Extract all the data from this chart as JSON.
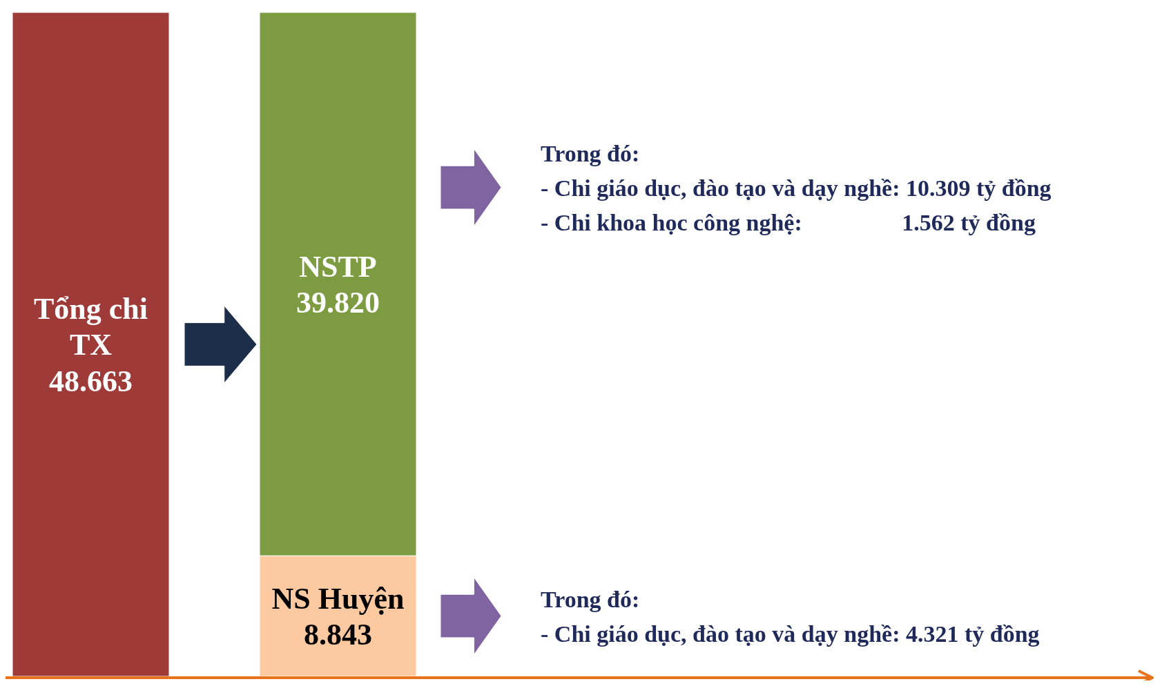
{
  "chart_data": {
    "type": "bar",
    "stacked": true,
    "categories": [
      null,
      null
    ],
    "series": [
      {
        "name": "Tổng chi TX",
        "color": "#9e3a38",
        "values": [
          48663,
          null
        ],
        "value_labels": [
          "48.663",
          null
        ]
      },
      {
        "name": "NS Huyện",
        "color": "#fcc9a0",
        "values": [
          null,
          8843
        ],
        "value_labels": [
          null,
          "8.843"
        ]
      },
      {
        "name": "NSTP",
        "color": "#7d9c41",
        "values": [
          null,
          39820
        ],
        "value_labels": [
          null,
          "39.820"
        ]
      }
    ],
    "annotations": [
      "Trong đó:",
      "- Chi giáo dục, đào tạo và dạy nghề: 10.309 tỷ đồng",
      "- Chi khoa học công nghệ:                 1.562 tỷ đồng",
      "Trong đó:",
      "- Chi giáo dục, đào tạo và dạy nghề: 4.321 tỷ đồng"
    ]
  }
}
